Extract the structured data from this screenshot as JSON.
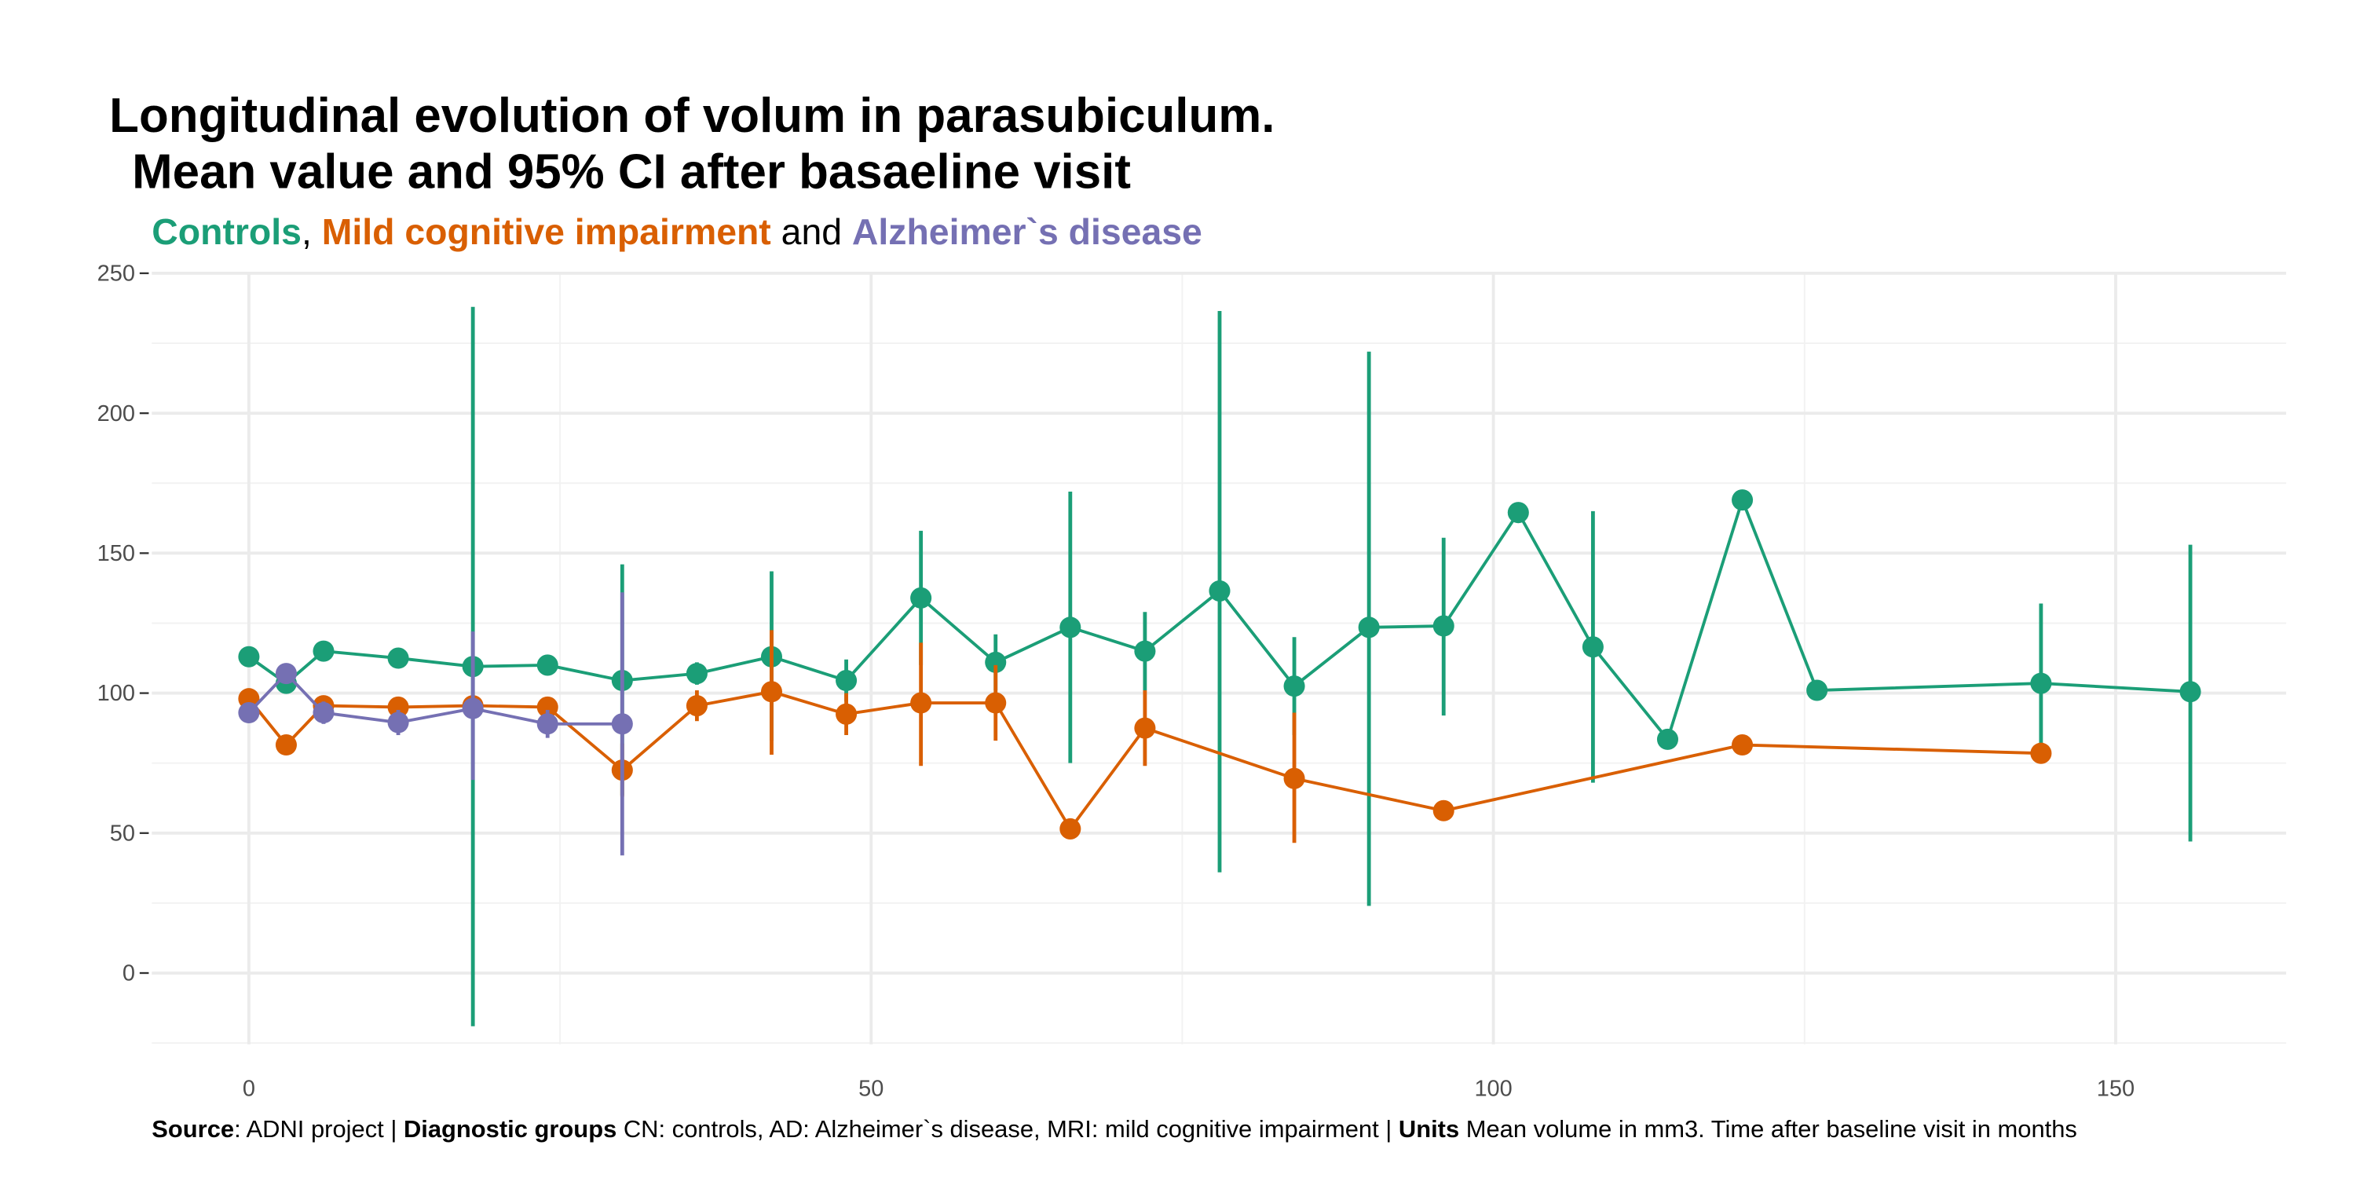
{
  "chart_data": {
    "type": "line",
    "title": [
      "Longitudinal evolution of volum in parasubiculum.",
      "Mean value and 95% CI after basaeline visit"
    ],
    "subtitle": [
      "Controls",
      ", ",
      "Mild cognitive impairment",
      " and ",
      "Alzheimer`s disease"
    ],
    "caption": [
      "Source",
      ": ADNI project | ",
      "Diagnostic groups",
      " CN: controls, AD: Alzheimer`s disease, MRI: mild cognitive impairment | ",
      "Units",
      " Mean volume in mm3. Time after baseline visit in months"
    ],
    "xlim": [
      -7.8,
      163.7
    ],
    "ylim": [
      -25.5,
      250
    ],
    "xticks": [
      0,
      50,
      100,
      150
    ],
    "yticks": [
      0,
      50,
      100,
      150,
      200,
      250
    ],
    "x_minor_ticks": [
      25,
      75,
      125
    ],
    "y_minor_ticks": [
      -25,
      25,
      75,
      125,
      175,
      225
    ],
    "grid": true,
    "series": [
      {
        "name": "Controls",
        "color": "#1b9e77",
        "x": [
          0,
          3,
          6,
          12,
          18,
          24,
          30,
          36,
          42,
          48,
          54,
          60,
          66,
          72,
          78,
          84,
          90,
          96,
          102,
          108,
          114,
          120,
          126,
          144,
          156
        ],
        "values": [
          113,
          103.5,
          115,
          112.5,
          109.5,
          110,
          104.5,
          107,
          113,
          104.5,
          134,
          111,
          123.5,
          115,
          136.5,
          102.5,
          123.5,
          124,
          164.5,
          116.5,
          83.5,
          169,
          101,
          103.5,
          100.5
        ],
        "ci_low": [
          null,
          null,
          112,
          null,
          -19,
          107,
          63.5,
          103,
          83,
          97,
          110,
          101,
          75,
          101,
          36,
          85,
          24,
          92,
          null,
          68,
          null,
          null,
          null,
          75,
          47
        ],
        "ci_high": [
          null,
          null,
          118,
          null,
          238,
          113,
          146,
          111,
          143.5,
          112,
          158,
          121,
          172,
          129,
          236.5,
          120,
          222,
          155.5,
          null,
          165,
          null,
          null,
          null,
          132,
          153
        ]
      },
      {
        "name": "Mild cognitive impairment",
        "color": "#d95f02",
        "x": [
          0,
          3,
          6,
          12,
          18,
          24,
          30,
          36,
          42,
          48,
          54,
          60,
          66,
          72,
          84,
          96,
          120,
          144
        ],
        "values": [
          98,
          81.5,
          95.5,
          95,
          95.5,
          95,
          72.5,
          95.5,
          100.5,
          92.5,
          96.5,
          96.5,
          51.5,
          87.5,
          69.5,
          58,
          81.5,
          78.5
        ],
        "ci_low": [
          null,
          null,
          null,
          null,
          null,
          null,
          63,
          90,
          78,
          85,
          74,
          83,
          null,
          74,
          46.5,
          null,
          null,
          null
        ],
        "ci_high": [
          null,
          null,
          null,
          null,
          null,
          null,
          82,
          101,
          122.5,
          100,
          118,
          110,
          null,
          101,
          93,
          null,
          null,
          null
        ]
      },
      {
        "name": "Alzheimer`s disease",
        "color": "#7570b3",
        "x": [
          0,
          3,
          6,
          12,
          18,
          24,
          30
        ],
        "values": [
          93,
          107,
          93,
          89.5,
          94.5,
          89,
          89
        ],
        "ci_low": [
          null,
          null,
          89,
          85,
          69,
          84,
          42
        ],
        "ci_high": [
          null,
          null,
          97,
          94,
          122,
          94,
          136
        ]
      }
    ]
  }
}
